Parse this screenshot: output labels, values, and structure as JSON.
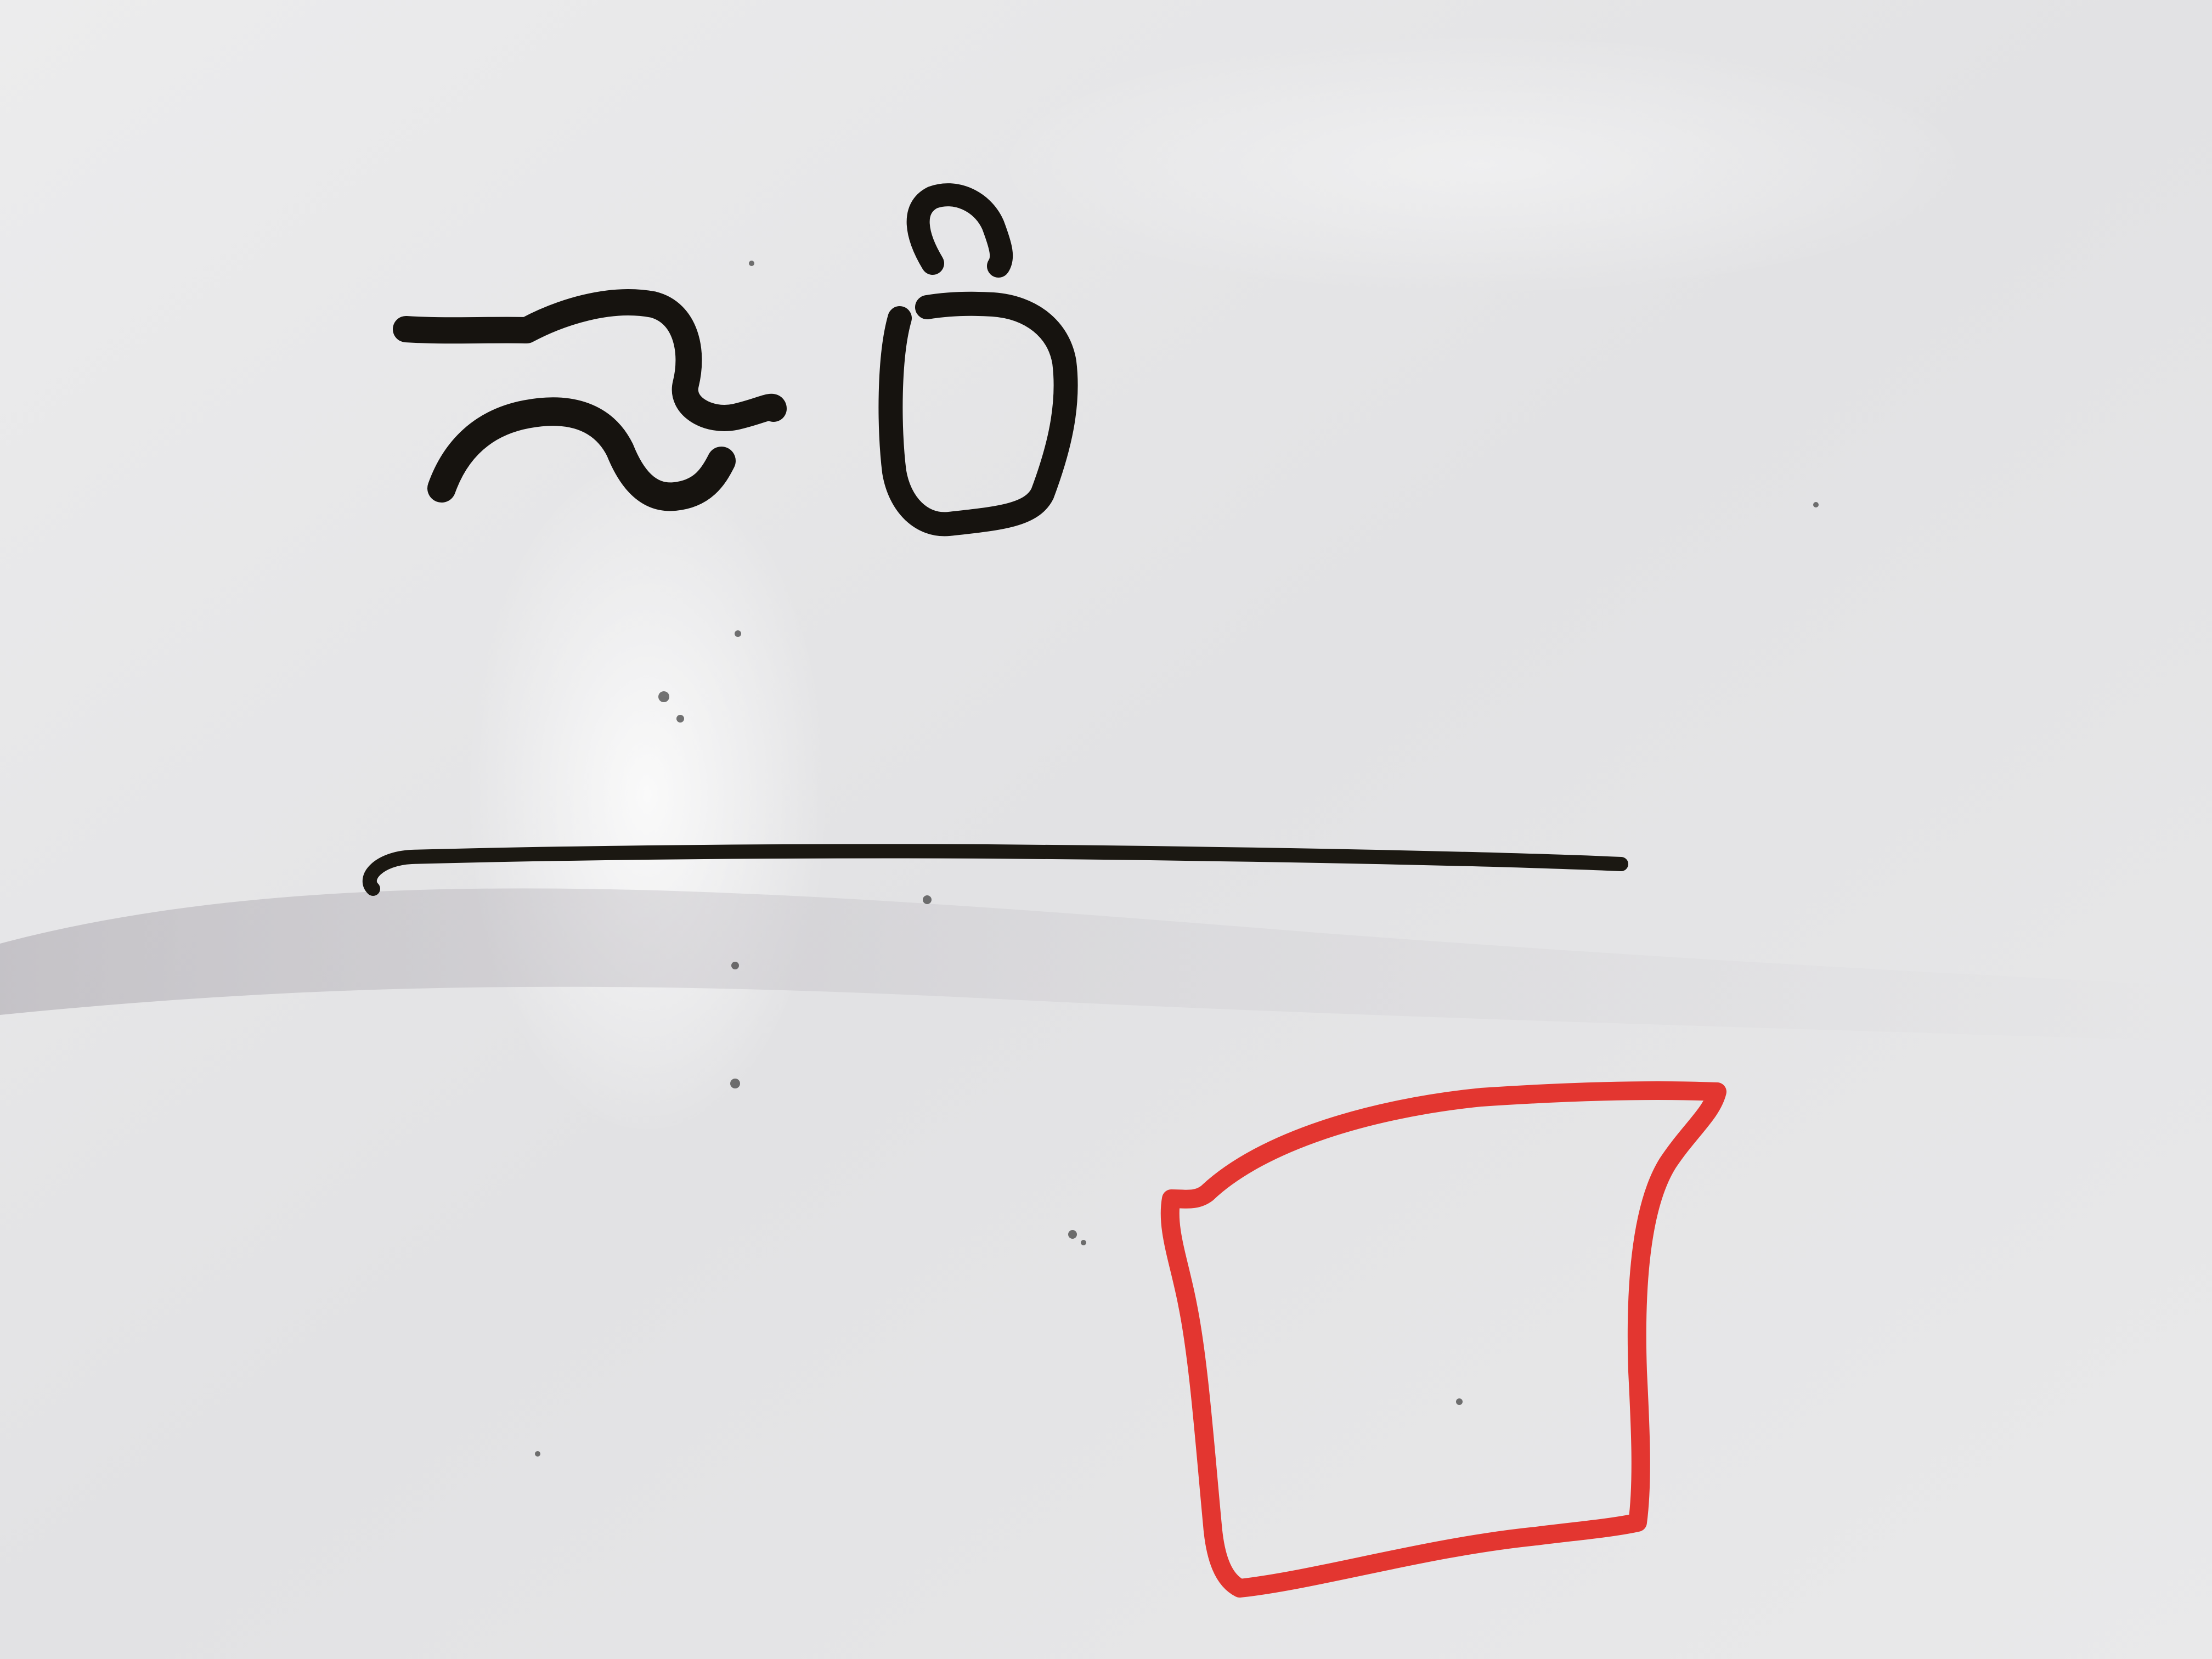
{
  "scene": {
    "subject": "whiteboard-drawing",
    "board_color": "#e6e6e8",
    "glare_color": "#f7f8f8",
    "smudge_color": "#b8b6bb"
  },
  "handwriting": {
    "text": "ນີ",
    "ink_color": "#16130f"
  },
  "fraction_bar": {
    "ink_color": "#1b1812"
  },
  "answer_box": {
    "ink_color": "#e33630"
  }
}
